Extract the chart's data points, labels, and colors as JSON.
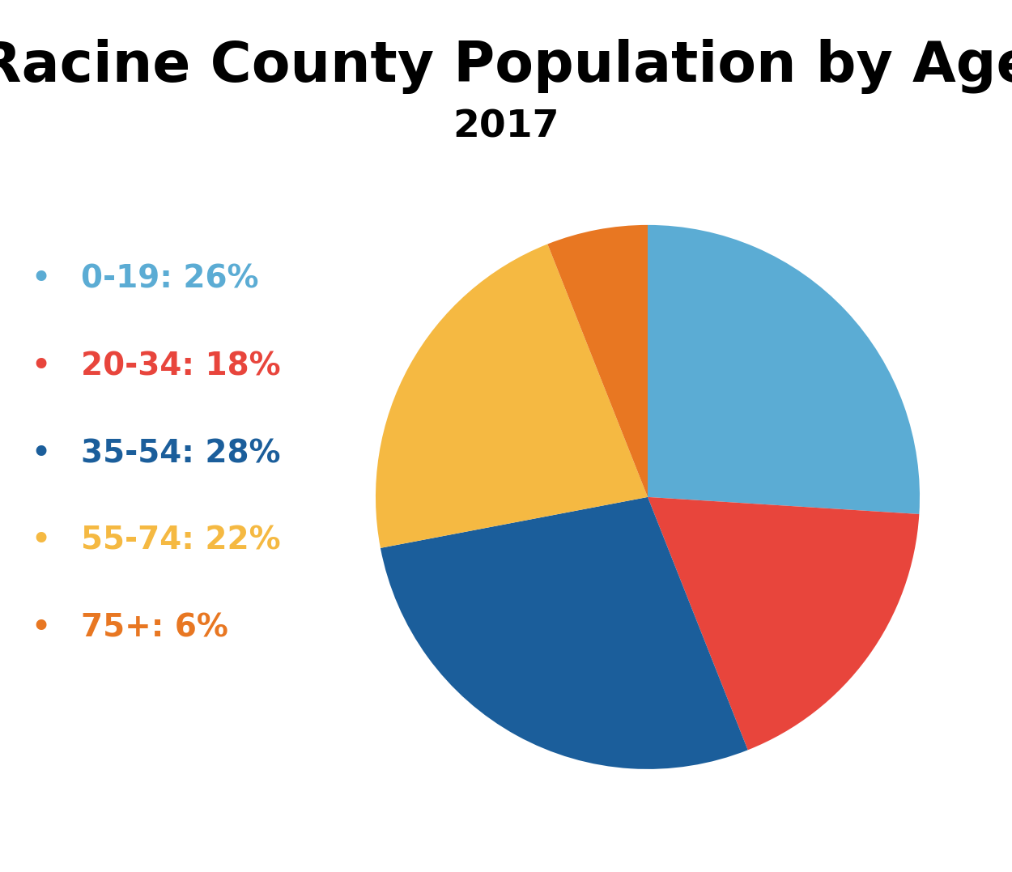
{
  "title": "Racine County Population by Age",
  "subtitle": "2017",
  "labels": [
    "0-19",
    "20-34",
    "35-54",
    "55-74",
    "75+"
  ],
  "values": [
    26,
    18,
    28,
    22,
    6
  ],
  "colors": [
    "#5BACD4",
    "#E8453C",
    "#1B5E9B",
    "#F5B942",
    "#E87722"
  ],
  "legend_labels": [
    "0-19: 26%",
    "20-34: 18%",
    "35-54: 28%",
    "55-74: 22%",
    "75+: 6%"
  ],
  "legend_text_colors": [
    "#5BACD4",
    "#E8453C",
    "#1B5E9B",
    "#F5B942",
    "#E87722"
  ],
  "title_fontsize": 50,
  "subtitle_fontsize": 34,
  "legend_fontsize": 28,
  "background_color": "#FFFFFF",
  "startangle": 90
}
